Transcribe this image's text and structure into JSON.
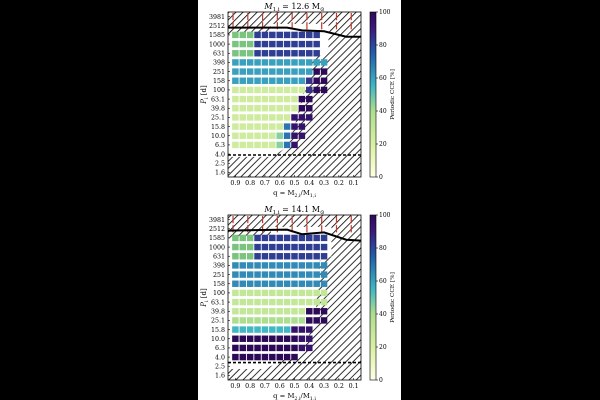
{
  "colors": {
    "background": "#000000",
    "figure": "#ffffff",
    "hatch": "#000000",
    "red_band": "#c0392b",
    "green_cells": "#7bc47f"
  },
  "chart_data": [
    {
      "type": "heatmap",
      "title": "M_{1,i} = 12.6 M_⊙",
      "title_parts": {
        "lhs": "M",
        "lhs_sub": "1,i",
        "rhs": " = 12.6 M",
        "rhs_sub": "⊙"
      },
      "xlabel": {
        "text": "q = M",
        "sub1": "2,i",
        "mid": "/M",
        "sub2": "1,i"
      },
      "ylabel": {
        "text": "P",
        "sub": "i",
        "unit": " [d]"
      },
      "x_ticks": [
        "0.9",
        "0.8",
        "0.7",
        "0.6",
        "0.5",
        "0.4",
        "0.3",
        "0.2",
        "0.1"
      ],
      "y_ticks": [
        "3981",
        "2512",
        "1585",
        "1000",
        "631",
        "398",
        "251",
        "158",
        "100",
        "63.1",
        "39.8",
        "25.1",
        "15.8",
        "10.0",
        "6.3",
        "4.0",
        "2.5",
        "1.6"
      ],
      "colorbar": {
        "label": "Periodic CCE [%]",
        "ticks": [
          "100",
          "80",
          "60",
          "40",
          "20",
          "0"
        ],
        "range": [
          0,
          100
        ],
        "colormap": "viridis_r"
      },
      "high_cce_min_period_by_q": {
        "0.5": 6.3,
        "0.45": 10.0,
        "0.4": 25.1,
        "0.35": 63.1,
        "0.3": 158
      }
    },
    {
      "type": "heatmap",
      "title": "M_{1,i} = 14.1 M_⊙",
      "title_parts": {
        "lhs": "M",
        "lhs_sub": "1,i",
        "rhs": " = 14.1 M",
        "rhs_sub": "⊙"
      },
      "xlabel": {
        "text": "q = M",
        "sub1": "2,i",
        "mid": "/M",
        "sub2": "1,i"
      },
      "ylabel": {
        "text": "P",
        "sub": "i",
        "unit": " [d]"
      },
      "x_ticks": [
        "0.9",
        "0.8",
        "0.7",
        "0.6",
        "0.5",
        "0.4",
        "0.3",
        "0.2",
        "0.1"
      ],
      "y_ticks": [
        "3981",
        "2512",
        "1585",
        "1000",
        "631",
        "398",
        "251",
        "158",
        "100",
        "63.1",
        "39.8",
        "25.1",
        "15.8",
        "10.0",
        "6.3",
        "4.0",
        "2.5",
        "1.6"
      ],
      "colorbar": {
        "label": "Periodic CCE [%]",
        "ticks": [
          "100",
          "80",
          "60",
          "40",
          "20",
          "0"
        ],
        "range": [
          0,
          100
        ],
        "colormap": "viridis_r"
      },
      "high_cce_max_period_by_q": {
        "0.9": 6.3,
        "0.7": 6.3,
        "0.5": 10.0,
        "0.4": 15.8,
        "0.35": 25.1
      }
    }
  ]
}
